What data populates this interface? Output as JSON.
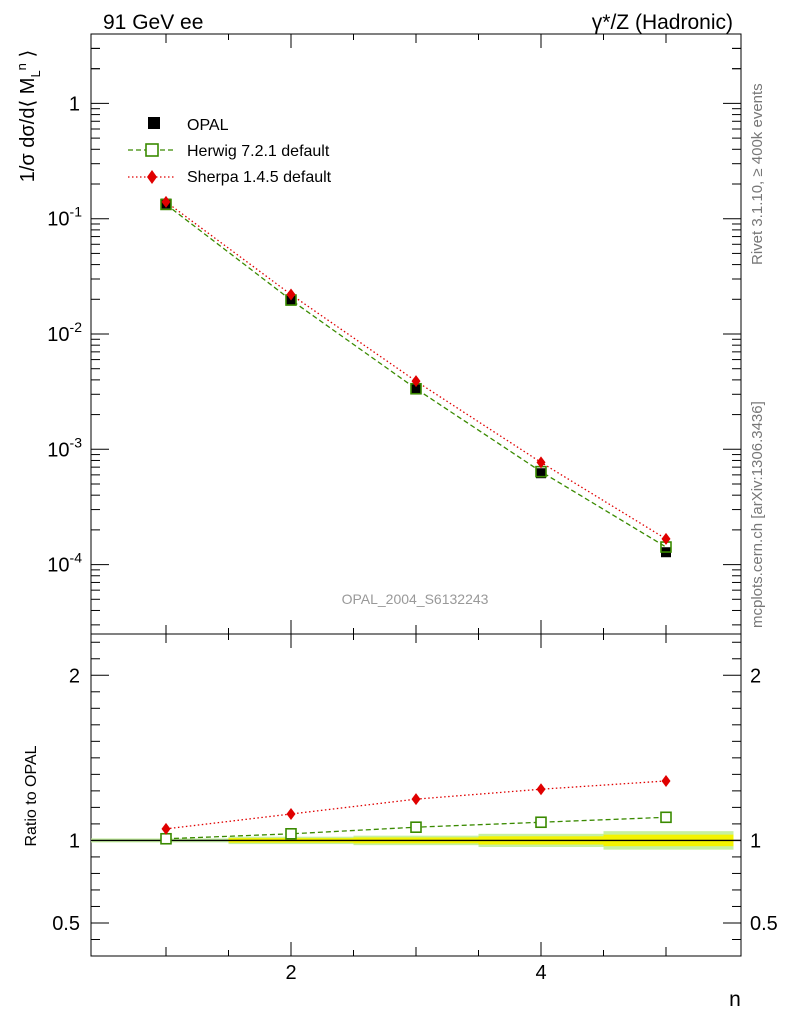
{
  "header": {
    "left_title": "91 GeV ee",
    "right_title": "γ*/Z (Hadronic)"
  },
  "side_notes": {
    "rivet": "Rivet 3.1.10, ≥ 400k events",
    "mcplots": "mcplots.cern.ch [arXiv:1306.3436]"
  },
  "analysis_label": "OPAL_2004_S6132243",
  "colors": {
    "opal": "#000000",
    "herwig": "#3a8a00",
    "sherpa": "#e00000",
    "band_inner": "#f4f400",
    "band_outer": "#c6f0a0"
  },
  "chart_data": [
    {
      "type": "scatter",
      "panel": "main",
      "ylabel": "1/σ dσ/d⟨ M_L^n ⟩",
      "yscale": "log",
      "ylim": [
        2.5e-05,
        4
      ],
      "xlim": [
        0.4,
        5.6
      ],
      "y_tick_labels": [
        "1",
        "10^-1",
        "10^-2",
        "10^-3",
        "10^-4"
      ],
      "x": [
        1,
        2,
        3,
        4,
        5
      ],
      "legend_position": "top-left",
      "series": [
        {
          "name": "OPAL",
          "marker": "filled-square",
          "values": [
            0.135,
            0.0195,
            0.0033,
            0.00062,
            0.000128
          ]
        },
        {
          "name": "Herwig 7.2.1 default",
          "marker": "open-square",
          "line": "dashed",
          "values": [
            0.133,
            0.0197,
            0.00335,
            0.00064,
            0.000142
          ]
        },
        {
          "name": "Sherpa 1.4.5 default",
          "marker": "diamond",
          "line": "dotted",
          "values": [
            0.14,
            0.022,
            0.0039,
            0.00077,
            0.000167
          ]
        }
      ]
    },
    {
      "type": "line",
      "panel": "ratio",
      "ylabel": "Ratio to OPAL",
      "xlabel": "n",
      "ylim": [
        0.3,
        2.25
      ],
      "xlim": [
        0.4,
        5.6
      ],
      "y_tick_labels": [
        "0.5",
        "1",
        "2"
      ],
      "x_tick_labels": [
        "2",
        "4"
      ],
      "x": [
        1,
        2,
        3,
        4,
        5
      ],
      "series": [
        {
          "name": "Herwig 7.2.1 default",
          "values": [
            1.01,
            1.04,
            1.08,
            1.11,
            1.14
          ]
        },
        {
          "name": "Sherpa 1.4.5 default",
          "values": [
            1.07,
            1.16,
            1.25,
            1.31,
            1.36
          ]
        }
      ],
      "band": {
        "x": [
          1,
          2,
          3,
          4,
          5
        ],
        "half_width": [
          0.012,
          0.014,
          0.018,
          0.025,
          0.035
        ]
      }
    }
  ]
}
